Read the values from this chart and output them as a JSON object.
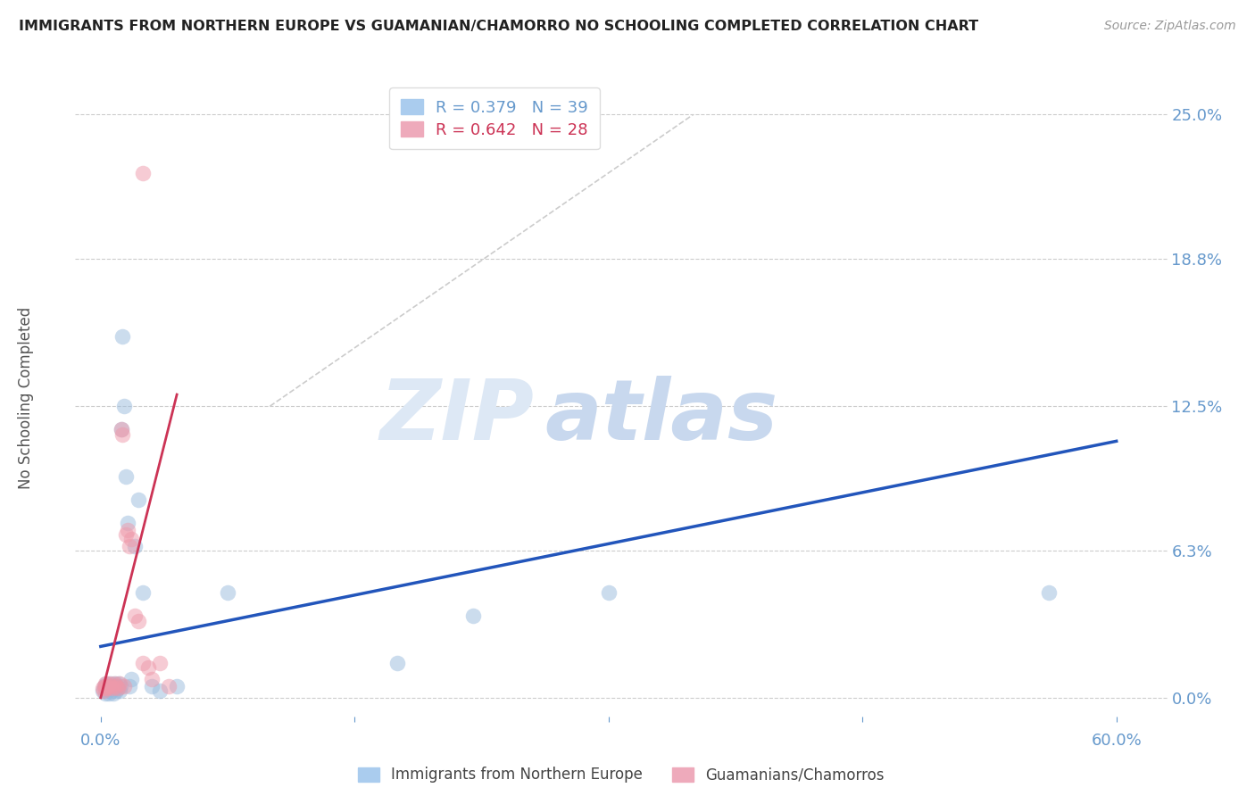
{
  "title": "IMMIGRANTS FROM NORTHERN EUROPE VS GUAMANIAN/CHAMORRO NO SCHOOLING COMPLETED CORRELATION CHART",
  "source": "Source: ZipAtlas.com",
  "ylabel_values": [
    0.0,
    6.3,
    12.5,
    18.8,
    25.0
  ],
  "xlim": [
    -1.5,
    63
  ],
  "ylim": [
    -0.8,
    26.5
  ],
  "blue_scatter_x": [
    0.1,
    0.2,
    0.25,
    0.3,
    0.35,
    0.4,
    0.45,
    0.5,
    0.55,
    0.6,
    0.65,
    0.7,
    0.75,
    0.8,
    0.85,
    0.9,
    0.95,
    1.0,
    1.05,
    1.1,
    1.15,
    1.2,
    1.3,
    1.4,
    1.5,
    1.6,
    1.7,
    1.8,
    2.0,
    2.2,
    2.5,
    3.0,
    3.5,
    4.5,
    7.5,
    17.5,
    22.0,
    30.0,
    56.0
  ],
  "blue_scatter_y": [
    0.3,
    0.5,
    0.2,
    0.4,
    0.6,
    0.3,
    0.5,
    0.2,
    0.4,
    0.6,
    0.3,
    0.5,
    0.2,
    0.4,
    0.6,
    0.3,
    0.5,
    0.4,
    0.6,
    0.3,
    0.5,
    11.5,
    15.5,
    12.5,
    9.5,
    7.5,
    0.5,
    0.8,
    6.5,
    8.5,
    4.5,
    0.5,
    0.3,
    0.5,
    4.5,
    1.5,
    3.5,
    4.5,
    4.5
  ],
  "pink_scatter_x": [
    0.1,
    0.15,
    0.2,
    0.25,
    0.3,
    0.35,
    0.4,
    0.5,
    0.6,
    0.7,
    0.8,
    0.9,
    1.0,
    1.1,
    1.2,
    1.3,
    1.4,
    1.5,
    1.6,
    1.7,
    1.8,
    2.0,
    2.2,
    2.5,
    2.8,
    3.0,
    3.5,
    4.0
  ],
  "pink_scatter_y": [
    0.4,
    0.3,
    0.5,
    0.4,
    0.6,
    0.5,
    0.4,
    0.6,
    0.5,
    0.4,
    0.6,
    0.5,
    0.4,
    0.6,
    11.5,
    11.3,
    0.5,
    7.0,
    7.2,
    6.5,
    6.8,
    3.5,
    3.3,
    1.5,
    1.3,
    0.8,
    1.5,
    0.5
  ],
  "pink_outlier_x": 2.5,
  "pink_outlier_y": 22.5,
  "blue_line_x0": 0,
  "blue_line_x1": 60,
  "blue_line_y0": 2.2,
  "blue_line_y1": 11.0,
  "pink_line_x0": 0,
  "pink_line_x1": 4.5,
  "pink_line_y0": 0.0,
  "pink_line_y1": 13.0,
  "diagonal_x0": 10,
  "diagonal_x1": 35,
  "diagonal_y0": 12.5,
  "diagonal_y1": 25.0,
  "watermark_zip": "ZIP",
  "watermark_atlas": "atlas",
  "title_color": "#222222",
  "axis_color": "#6699cc",
  "grid_color": "#cccccc",
  "blue_dot_color": "#99bbdd",
  "pink_dot_color": "#ee99aa",
  "blue_line_color": "#2255bb",
  "pink_line_color": "#cc3355",
  "watermark_zip_color": "#dde8f5",
  "watermark_atlas_color": "#c8d8ee",
  "source_color": "#999999"
}
